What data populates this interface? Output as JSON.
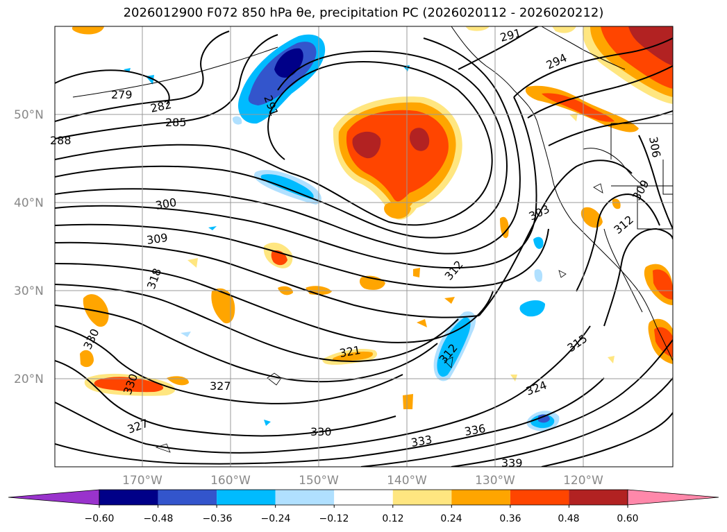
{
  "title": "2026012900 F072 850 hPa θe, precipitation PC (2026020112 - 2026020212)",
  "lat_labels": [
    "50°N",
    "40°N",
    "30°N",
    "20°N"
  ],
  "lon_labels": [
    "170°W",
    "160°W",
    "150°W",
    "140°W",
    "130°W",
    "120°W"
  ],
  "colorbar": {
    "ticks": [
      "−0.60",
      "−0.48",
      "−0.36",
      "−0.24",
      "−0.12",
      "0.12",
      "0.24",
      "0.36",
      "0.48",
      "0.60"
    ],
    "colors": [
      "#9933cc",
      "#000088",
      "#3355cc",
      "#00bbff",
      "#b0e0ff",
      "#ffffff",
      "#ffe680",
      "#ffa500",
      "#ff4500",
      "#b22222",
      "#ff88aa"
    ]
  },
  "contour_labels": [
    "279",
    "282",
    "285",
    "288",
    "291",
    "291",
    "294",
    "300",
    "303",
    "306",
    "309",
    "309",
    "312",
    "312",
    "312",
    "315",
    "318",
    "321",
    "324",
    "327",
    "327",
    "330",
    "330",
    "330",
    "333",
    "336",
    "339"
  ],
  "colors": {
    "positive_strong": "#b22222",
    "positive": "#ff4500",
    "positive_mid": "#ffa500",
    "positive_weak": "#ffe680",
    "negative_weak": "#b0e0ff",
    "negative": "#00bbff",
    "negative_mid": "#3355cc",
    "negative_strong": "#000088"
  }
}
